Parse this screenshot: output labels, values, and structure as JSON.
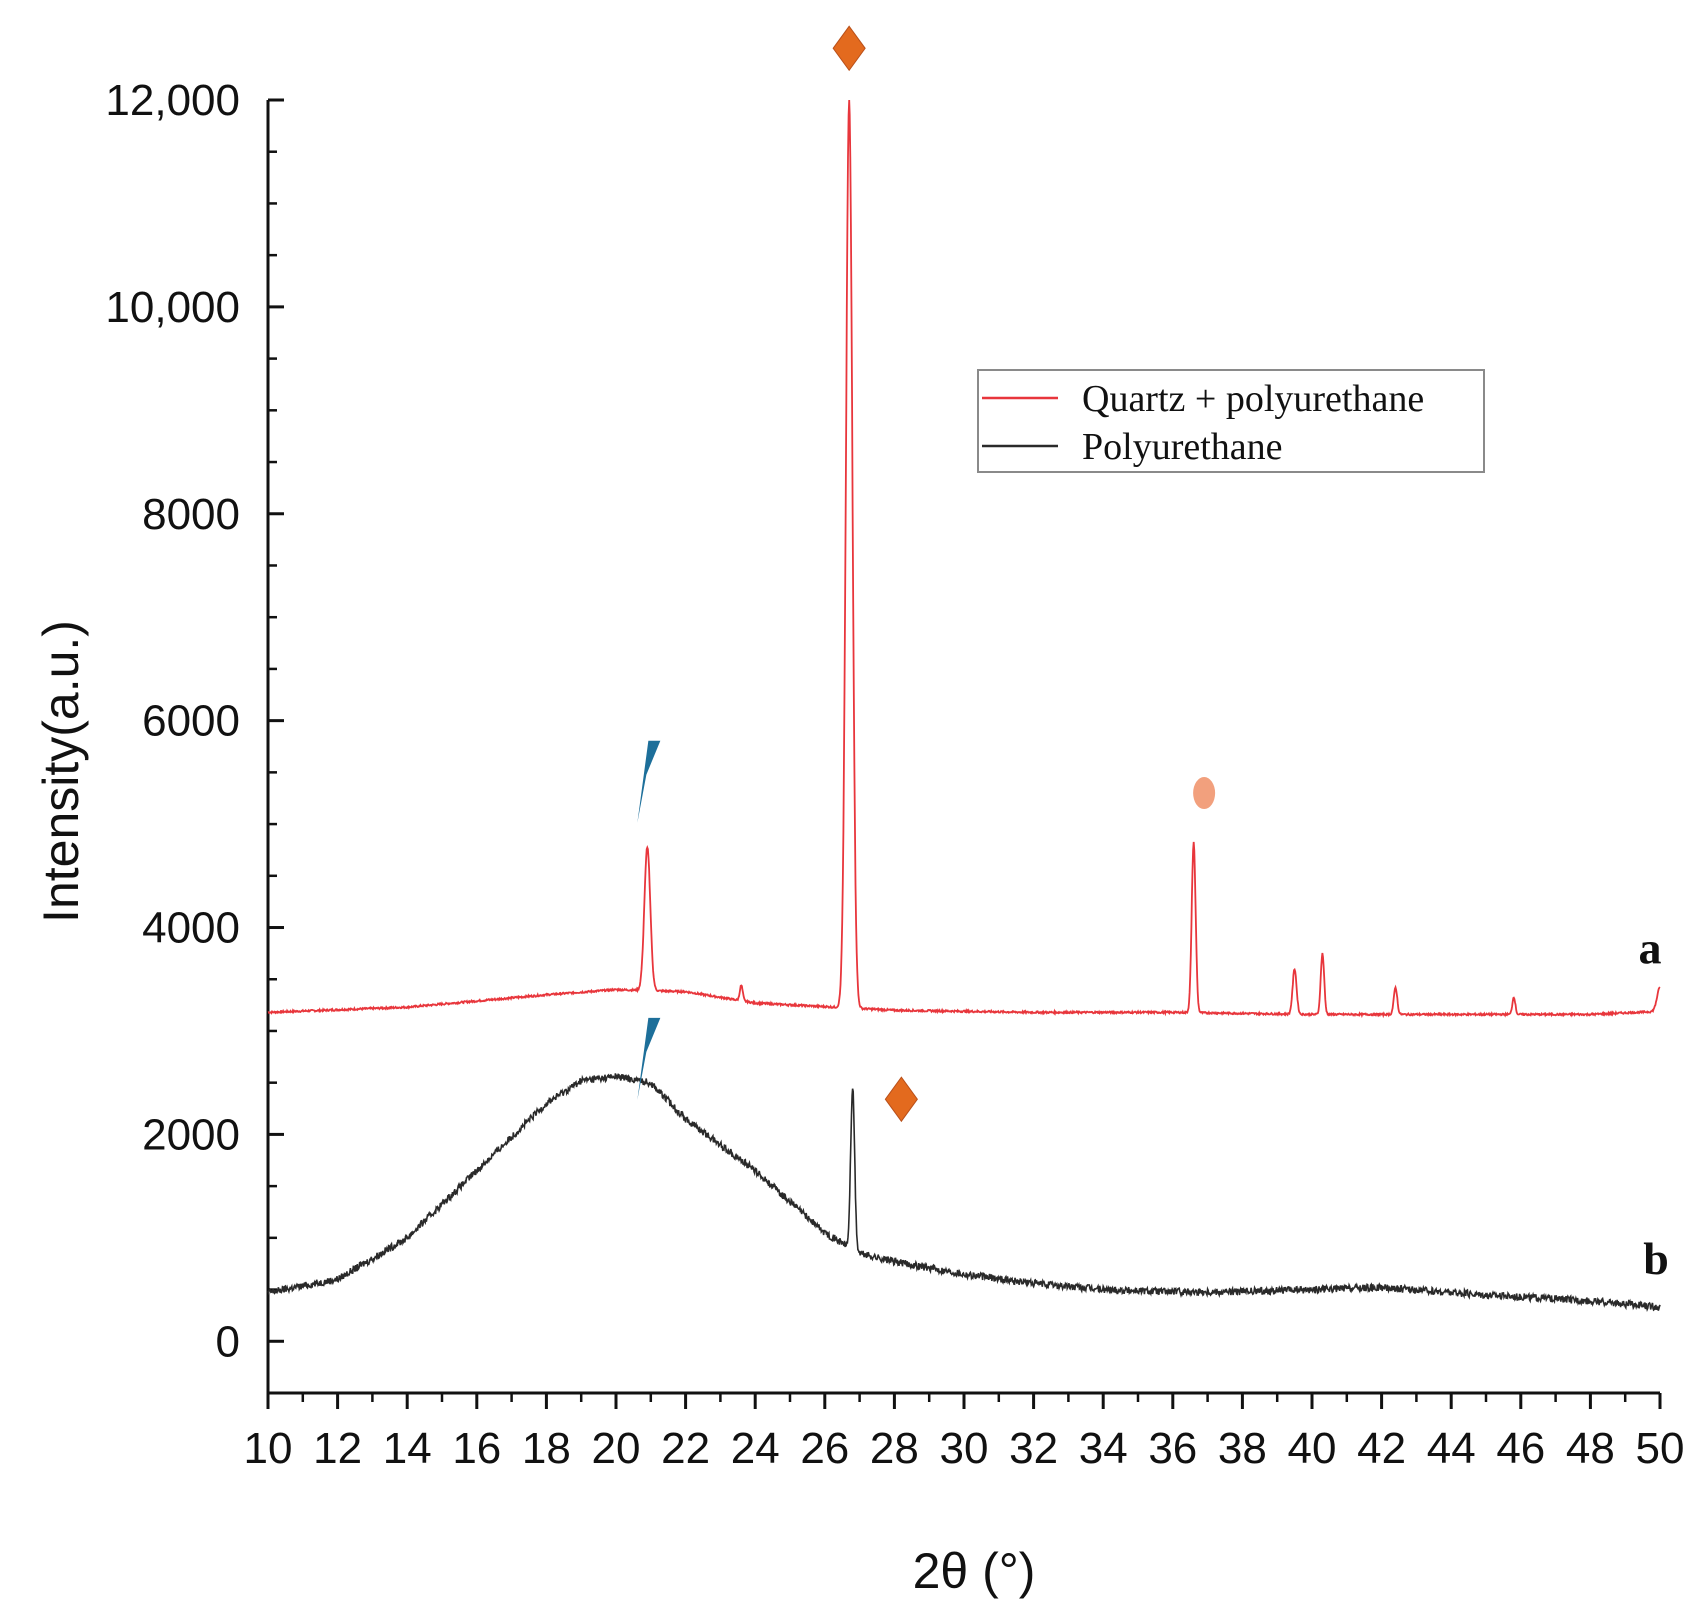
{
  "chart_data": {
    "type": "line",
    "title": "",
    "xlabel": "2θ (°)",
    "ylabel": "Intensity(a.u.)",
    "xlim": [
      10,
      50
    ],
    "ylim": [
      -500,
      12000
    ],
    "x_ticks": [
      10,
      12,
      14,
      16,
      18,
      20,
      22,
      24,
      26,
      28,
      30,
      32,
      34,
      36,
      38,
      40,
      42,
      44,
      46,
      48,
      50
    ],
    "x_tick_labels": [
      "10",
      "12",
      "14",
      "16",
      "18",
      "20",
      "22",
      "24",
      "26",
      "28",
      "30",
      "32",
      "34",
      "36",
      "38",
      "40",
      "42",
      "44",
      "46",
      "48",
      "50"
    ],
    "y_ticks": [
      0,
      2000,
      4000,
      6000,
      8000,
      10000,
      12000
    ],
    "y_tick_labels": [
      "0",
      "2000",
      "4000",
      "6000",
      "8000",
      "10,000",
      "12,000"
    ],
    "legend_position": "upper-right",
    "legend": [
      "Quartz + polyurethane",
      "Polyurethane"
    ],
    "series": [
      {
        "name": "Quartz + polyurethane",
        "color": "#e8363c",
        "curve_label": "a",
        "baseline": [
          [
            10,
            3180
          ],
          [
            14,
            3230
          ],
          [
            18,
            3350
          ],
          [
            20,
            3400
          ],
          [
            22,
            3380
          ],
          [
            24,
            3270
          ],
          [
            28,
            3200
          ],
          [
            32,
            3180
          ],
          [
            36,
            3180
          ],
          [
            40,
            3160
          ],
          [
            44,
            3160
          ],
          [
            48,
            3160
          ],
          [
            50,
            3190
          ]
        ],
        "peaks": [
          {
            "x": 20.9,
            "y": 4780,
            "width": 0.12
          },
          {
            "x": 23.6,
            "y": 3440,
            "width": 0.06
          },
          {
            "x": 26.7,
            "y": 12000,
            "width": 0.13
          },
          {
            "x": 36.6,
            "y": 4820,
            "width": 0.08
          },
          {
            "x": 39.5,
            "y": 3600,
            "width": 0.08
          },
          {
            "x": 40.3,
            "y": 3750,
            "width": 0.07
          },
          {
            "x": 42.4,
            "y": 3420,
            "width": 0.07
          },
          {
            "x": 45.8,
            "y": 3330,
            "width": 0.06
          },
          {
            "x": 50.0,
            "y": 3420,
            "width": 0.12
          }
        ]
      },
      {
        "name": "Polyurethane",
        "color": "#2a2a2a",
        "curve_label": "b",
        "baseline": [
          [
            10,
            470
          ],
          [
            12,
            600
          ],
          [
            14,
            1000
          ],
          [
            16,
            1650
          ],
          [
            18,
            2300
          ],
          [
            19,
            2520
          ],
          [
            20,
            2560
          ],
          [
            21,
            2500
          ],
          [
            22,
            2150
          ],
          [
            24,
            1650
          ],
          [
            26,
            1050
          ],
          [
            27,
            850
          ],
          [
            28,
            770
          ],
          [
            30,
            650
          ],
          [
            32,
            560
          ],
          [
            34,
            500
          ],
          [
            36,
            480
          ],
          [
            38,
            480
          ],
          [
            40,
            500
          ],
          [
            42,
            520
          ],
          [
            44,
            470
          ],
          [
            46,
            430
          ],
          [
            48,
            390
          ],
          [
            50,
            330
          ]
        ],
        "peaks": [
          {
            "x": 26.8,
            "y": 2450,
            "width": 0.08
          }
        ]
      }
    ],
    "phase_markers": [
      {
        "shape": "diamond",
        "color": "#e36a1e",
        "x": 26.7,
        "y": 12500
      },
      {
        "shape": "diamond",
        "color": "#e36a1e",
        "x": 28.2,
        "y": 2340
      },
      {
        "shape": "ellipse",
        "color": "#f2a07d",
        "x": 36.9,
        "y": 5300
      },
      {
        "shape": "slash",
        "color": "#1d6f9a",
        "x": 20.7,
        "y": 5400
      },
      {
        "shape": "slash",
        "color": "#1d6f9a",
        "x": 20.7,
        "y": 2720
      }
    ]
  }
}
